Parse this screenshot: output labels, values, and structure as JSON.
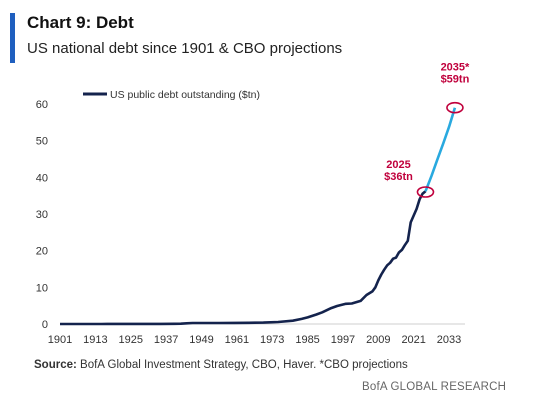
{
  "header": {
    "title": "Chart 9: Debt",
    "subtitle": "US national debt since 1901 & CBO projections"
  },
  "footer": {
    "source_label": "Source:",
    "source_text": "BofA Global Investment Strategy, CBO, Haver. *CBO projections",
    "brand": "BofA GLOBAL RESEARCH"
  },
  "colors": {
    "historical": "#14234d",
    "projection": "#29a9df",
    "annotation": "#c0003c"
  },
  "chart_data": {
    "type": "line",
    "legend": {
      "label": "US public debt outstanding ($tn)",
      "placement": "top-left"
    },
    "xlim": [
      1901,
      2035
    ],
    "ylim": [
      0,
      60
    ],
    "x_ticks": [
      "1901",
      "1913",
      "1925",
      "1937",
      "1949",
      "1961",
      "1973",
      "1985",
      "1997",
      "2009",
      "2021",
      "2033"
    ],
    "y_ticks": [
      "0",
      "10",
      "20",
      "30",
      "40",
      "50",
      "60"
    ],
    "grid": false,
    "series": [
      {
        "name": "US public debt outstanding ($tn)",
        "historical_x": [
          1901,
          1915,
          1917,
          1919,
          1925,
          1930,
          1935,
          1940,
          1942,
          1944,
          1946,
          1950,
          1955,
          1960,
          1965,
          1970,
          1975,
          1980,
          1983,
          1985,
          1988,
          1990,
          1993,
          1995,
          1998,
          2000,
          2003,
          2005,
          2007,
          2008,
          2009,
          2010,
          2011,
          2012,
          2013,
          2014,
          2015,
          2016,
          2017,
          2018,
          2019,
          2020,
          2021,
          2022,
          2023,
          2024,
          2025
        ],
        "historical_y": [
          0.001,
          0.003,
          0.03,
          0.025,
          0.02,
          0.016,
          0.028,
          0.043,
          0.07,
          0.2,
          0.27,
          0.26,
          0.27,
          0.29,
          0.32,
          0.37,
          0.54,
          0.9,
          1.4,
          1.8,
          2.6,
          3.2,
          4.35,
          4.9,
          5.5,
          5.6,
          6.3,
          7.9,
          8.9,
          10.0,
          11.9,
          13.5,
          14.8,
          16.0,
          16.7,
          17.8,
          18.1,
          19.5,
          20.2,
          21.5,
          22.7,
          27.7,
          29.6,
          31.4,
          34.0,
          35.5,
          36.2
        ],
        "projection_x": [
          2025,
          2027,
          2029,
          2031,
          2033,
          2035
        ],
        "projection_y": [
          36.2,
          40.3,
          44.8,
          49.2,
          53.8,
          59
        ]
      }
    ],
    "annotations": [
      {
        "year": 2025,
        "value": 36,
        "label_line1": "2025",
        "label_line2": "$36tn"
      },
      {
        "year": 2035,
        "value": 59,
        "label_line1": "2035*",
        "label_line2": "$59tn"
      }
    ]
  }
}
